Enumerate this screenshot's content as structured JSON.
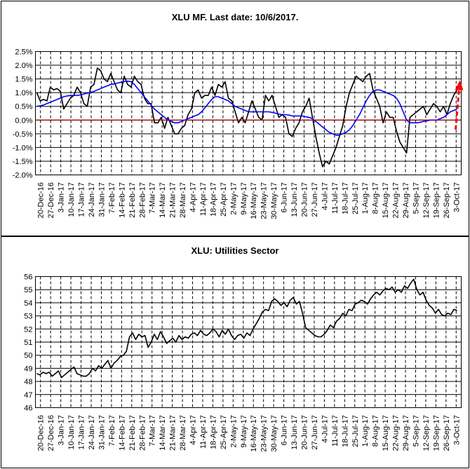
{
  "chart_data": [
    {
      "type": "line",
      "title": "XLU MF. Last date: 10/6/2017.",
      "ylim": [
        -2.0,
        2.5
      ],
      "y_ticks": [
        "-2.0%",
        "-1.5%",
        "-1.0%",
        "-0.5%",
        "0.0%",
        "0.5%",
        "1.0%",
        "1.5%",
        "2.0%",
        "2.5%"
      ],
      "y_tick_values": [
        -2.0,
        -1.5,
        -1.0,
        -0.5,
        0.0,
        0.5,
        1.0,
        1.5,
        2.0,
        2.5
      ],
      "x_ticks": [
        "20-Dec-16",
        "27-Dec-16",
        "3-Jan-17",
        "10-Jan-17",
        "17-Jan-17",
        "24-Jan-17",
        "31-Jan-17",
        "7-Feb-17",
        "14-Feb-17",
        "21-Feb-17",
        "28-Feb-17",
        "7-Mar-17",
        "14-Mar-17",
        "21-Mar-17",
        "28-Mar-17",
        "4-Apr-17",
        "11-Apr-17",
        "18-Apr-17",
        "25-Apr-17",
        "2-May-17",
        "9-May-17",
        "16-May-17",
        "23-May-17",
        "30-May-17",
        "6-Jun-17",
        "13-Jun-17",
        "20-Jun-17",
        "27-Jun-17",
        "4-Jul-17",
        "11-Jul-17",
        "18-Jul-17",
        "25-Jul-17",
        "1-Aug-17",
        "8-Aug-17",
        "15-Aug-17",
        "22-Aug-17",
        "29-Aug-17",
        "5-Sep-17",
        "12-Sep-17",
        "19-Sep-17",
        "26-Sep-17",
        "3-Oct-17"
      ],
      "series": [
        {
          "color": "#000000",
          "values": [
            1.0,
            0.7,
            0.75,
            0.7,
            1.2,
            1.1,
            1.15,
            1.05,
            0.4,
            0.6,
            0.8,
            0.9,
            1.2,
            1.0,
            0.6,
            0.5,
            1.2,
            1.3,
            1.9,
            1.8,
            1.5,
            1.4,
            1.7,
            1.4,
            1.1,
            1.0,
            1.6,
            1.3,
            1.2,
            1.6,
            1.4,
            1.3,
            0.8,
            0.6,
            0.6,
            -0.1,
            -0.1,
            0.1,
            -0.3,
            0.1,
            -0.2,
            -0.5,
            -0.5,
            -0.3,
            -0.2,
            0.2,
            0.4,
            1.0,
            1.1,
            0.8,
            0.9,
            0.9,
            1.2,
            0.9,
            1.3,
            1.2,
            1.4,
            0.8,
            0.7,
            0.3,
            -0.1,
            0.1,
            -0.1,
            0.3,
            0.7,
            0.4,
            0.1,
            0.0,
            0.9,
            0.7,
            0.9,
            0.5,
            0.1,
            0.2,
            0.1,
            -0.5,
            -0.6,
            -0.3,
            -0.1,
            0.3,
            0.5,
            0.8,
            0.1,
            -0.6,
            -1.2,
            -1.7,
            -1.5,
            -1.6,
            -1.3,
            -1.0,
            -0.6,
            -0.2,
            0.5,
            1.0,
            1.3,
            1.6,
            1.5,
            1.4,
            1.6,
            1.7,
            1.1,
            0.8,
            0.5,
            -0.1,
            0.3,
            0.1,
            0.1,
            -0.4,
            -0.8,
            -1.0,
            -1.2,
            0.1,
            0.2,
            0.3,
            0.4,
            0.5,
            0.2,
            0.4,
            0.6,
            0.5,
            0.3,
            0.5,
            0.2,
            0.6,
            0.9,
            1.1
          ]
        },
        {
          "color": "#0000ff",
          "values": [
            0.5,
            0.52,
            0.55,
            0.6,
            0.65,
            0.7,
            0.75,
            0.8,
            0.85,
            0.88,
            0.9,
            0.9,
            0.9,
            0.92,
            0.95,
            0.98,
            1.0,
            1.05,
            1.1,
            1.15,
            1.2,
            1.25,
            1.3,
            1.32,
            1.35,
            1.38,
            1.4,
            1.42,
            1.4,
            1.3,
            1.15,
            1.0,
            0.85,
            0.7,
            0.55,
            0.4,
            0.3,
            0.2,
            0.1,
            0.0,
            -0.05,
            -0.1,
            -0.1,
            -0.05,
            0.0,
            0.05,
            0.1,
            0.15,
            0.2,
            0.3,
            0.45,
            0.6,
            0.75,
            0.85,
            0.85,
            0.8,
            0.75,
            0.7,
            0.6,
            0.5,
            0.45,
            0.4,
            0.35,
            0.3,
            0.3,
            0.3,
            0.3,
            0.3,
            0.3,
            0.3,
            0.28,
            0.25,
            0.22,
            0.2,
            0.2,
            0.18,
            0.15,
            0.15,
            0.15,
            0.15,
            0.12,
            0.1,
            0.05,
            -0.05,
            -0.15,
            -0.25,
            -0.35,
            -0.45,
            -0.5,
            -0.55,
            -0.55,
            -0.5,
            -0.45,
            -0.35,
            -0.2,
            0.0,
            0.2,
            0.45,
            0.7,
            0.9,
            1.05,
            1.1,
            1.1,
            1.05,
            1.0,
            0.95,
            0.9,
            0.8,
            0.6,
            0.3,
            0.0,
            -0.1,
            -0.1,
            -0.1,
            -0.08,
            -0.05,
            -0.03,
            0.0,
            0.0,
            0.0,
            0.05,
            0.1,
            0.2,
            0.3,
            0.35,
            0.4
          ]
        },
        {
          "color": "#ff0000",
          "style": "dotted",
          "values": [
            0.0,
            0.0
          ]
        }
      ],
      "annotation": {
        "type": "dashed-arrow",
        "color": "#ff0000",
        "from": -0.35,
        "to": 1.35
      }
    },
    {
      "type": "line",
      "title": "XLU: Utilities Sector",
      "ylim": [
        46,
        56
      ],
      "y_ticks": [
        "46",
        "47",
        "48",
        "49",
        "50",
        "51",
        "52",
        "53",
        "54",
        "55",
        "56"
      ],
      "y_tick_values": [
        46,
        47,
        48,
        49,
        50,
        51,
        52,
        53,
        54,
        55,
        56
      ],
      "x_ticks": [
        "20-Dec-16",
        "27-Dec-16",
        "3-Jan-17",
        "10-Jan-17",
        "17-Jan-17",
        "24-Jan-17",
        "31-Jan-17",
        "7-Feb-17",
        "14-Feb-17",
        "21-Feb-17",
        "28-Feb-17",
        "7-Mar-17",
        "14-Mar-17",
        "21-Mar-17",
        "28-Mar-17",
        "4-Apr-17",
        "11-Apr-17",
        "18-Apr-17",
        "25-Apr-17",
        "2-May-17",
        "9-May-17",
        "16-May-17",
        "23-May-17",
        "30-May-17",
        "6-Jun-17",
        "13-Jun-17",
        "20-Jun-17",
        "27-Jun-17",
        "4-Jul-17",
        "11-Jul-17",
        "18-Jul-17",
        "25-Jul-17",
        "1-Aug-17",
        "8-Aug-17",
        "15-Aug-17",
        "22-Aug-17",
        "29-Aug-17",
        "5-Sep-17",
        "12-Sep-17",
        "19-Sep-17",
        "26-Sep-17",
        "3-Oct-17"
      ],
      "series": [
        {
          "color": "#000000",
          "values": [
            48.6,
            48.5,
            48.7,
            48.6,
            48.7,
            48.4,
            48.6,
            48.8,
            48.3,
            48.5,
            48.7,
            48.9,
            49.1,
            48.6,
            48.5,
            48.4,
            48.4,
            48.6,
            49.0,
            48.8,
            49.2,
            49.0,
            49.3,
            49.6,
            49.0,
            49.4,
            49.6,
            49.9,
            50.0,
            50.3,
            51.4,
            51.7,
            51.2,
            51.6,
            51.4,
            51.5,
            50.6,
            51.0,
            51.6,
            51.2,
            51.8,
            51.4,
            50.9,
            51.1,
            51.3,
            51.0,
            51.5,
            51.2,
            51.4,
            51.3,
            51.6,
            51.7,
            51.5,
            51.9,
            51.6,
            51.5,
            51.7,
            52.0,
            51.8,
            51.4,
            51.9,
            51.6,
            52.0,
            51.5,
            51.2,
            51.5,
            51.6,
            51.3,
            51.7,
            51.5,
            52.0,
            52.4,
            52.8,
            53.3,
            53.5,
            53.4,
            54.1,
            54.3,
            54.1,
            53.8,
            54.0,
            53.7,
            54.2,
            54.4,
            53.9,
            54.1,
            53.2,
            52.1,
            51.9,
            51.7,
            51.5,
            51.4,
            51.4,
            51.6,
            51.9,
            52.3,
            52.1,
            52.6,
            52.8,
            53.2,
            53.0,
            53.5,
            53.4,
            53.9,
            54.0,
            54.2,
            54.1,
            53.9,
            54.3,
            54.6,
            54.8,
            54.6,
            54.9,
            55.1,
            55.0,
            55.2,
            54.8,
            55.0,
            54.8,
            55.3,
            55.1,
            55.5,
            55.8,
            55.0,
            54.6,
            54.8,
            54.2,
            53.8,
            53.6,
            53.2,
            53.5,
            53.1,
            53.0,
            53.2,
            53.1,
            53.5,
            53.4
          ]
        }
      ]
    }
  ]
}
